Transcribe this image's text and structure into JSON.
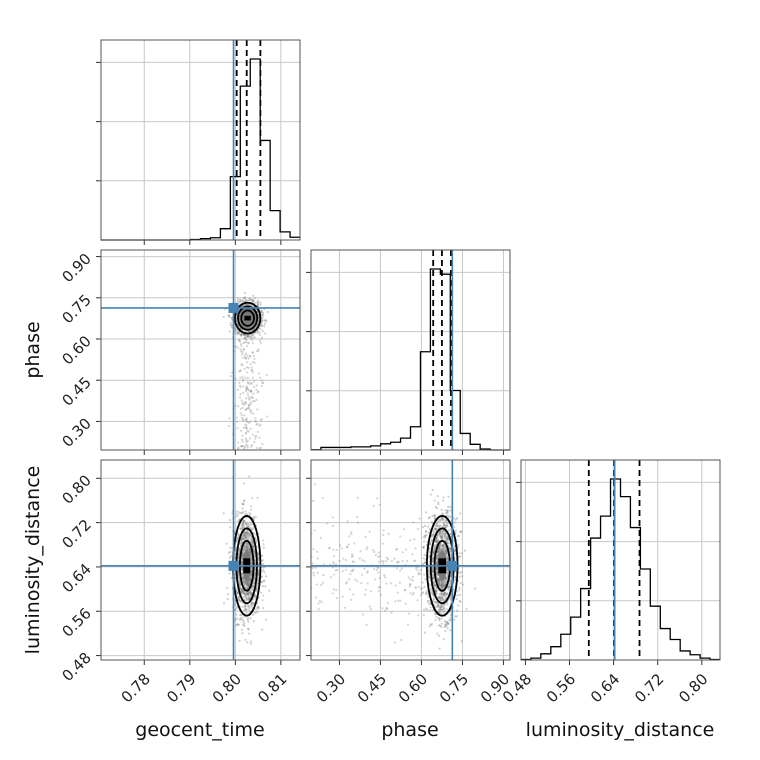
{
  "chart_data": {
    "type": "corner",
    "parameters": [
      "geocent_time",
      "phase",
      "luminosity_distance"
    ],
    "axis_labels": {
      "x": [
        "geocent_time",
        "phase",
        "luminosity_distance"
      ],
      "y": [
        "",
        "phase",
        "luminosity_distance"
      ]
    },
    "ticks": {
      "geocent_time": [
        "0.78",
        "0.79",
        "0.80",
        "0.81"
      ],
      "phase_x": [
        "0.30",
        "0.45",
        "0.60",
        "0.75",
        "0.90"
      ],
      "phase_y": [
        "0.30",
        "0.45",
        "0.60",
        "0.75",
        "0.90"
      ],
      "luminosity_distance_x": [
        "0.48",
        "0.56",
        "0.64",
        "0.72",
        "0.80"
      ],
      "luminosity_distance_y": [
        "0.48",
        "0.56",
        "0.64",
        "0.72",
        "0.80"
      ]
    },
    "ranges": {
      "geocent_time": [
        0.7705,
        0.8142
      ],
      "phase": [
        0.196,
        0.924
      ],
      "luminosity_distance": [
        0.472,
        0.833
      ]
    },
    "truths": {
      "geocent_time": 0.7996,
      "phase": 0.713,
      "luminosity_distance": 0.642
    },
    "quantiles": {
      "geocent_time": [
        0.8003,
        0.8025,
        0.8055
      ],
      "phase": [
        0.643,
        0.675,
        0.708
      ],
      "luminosity_distance": [
        0.595,
        0.641,
        0.687
      ]
    },
    "histograms": {
      "geocent_time": {
        "edges": [
          0.7705,
          0.77269,
          0.77487,
          0.77706,
          0.77924,
          0.78143,
          0.78361,
          0.7858,
          0.78798,
          0.79017,
          0.79235,
          0.79454,
          0.79672,
          0.79891,
          0.80109,
          0.80328,
          0.80546,
          0.80765,
          0.80983,
          0.81202,
          0.8142
        ],
        "counts": [
          0,
          0,
          0,
          0,
          0,
          0,
          0,
          0,
          0,
          1,
          3,
          5,
          25,
          140,
          340,
          400,
          220,
          65,
          18,
          6
        ]
      },
      "phase": {
        "edges": [
          0.196,
          0.2324,
          0.2688,
          0.3052,
          0.3416,
          0.378,
          0.4144,
          0.4508,
          0.4872,
          0.5236,
          0.56,
          0.5964,
          0.6328,
          0.6692,
          0.7056,
          0.742,
          0.7784,
          0.8148,
          0.8512,
          0.8876,
          0.924
        ],
        "counts": [
          1,
          10,
          10,
          10,
          12,
          12,
          16,
          24,
          30,
          46,
          90,
          380,
          700,
          680,
          230,
          64,
          22,
          4,
          0,
          0
        ]
      },
      "luminosity_distance": {
        "edges": [
          0.472,
          0.49,
          0.508,
          0.5261,
          0.5442,
          0.5622,
          0.5802,
          0.5983,
          0.6163,
          0.6344,
          0.6525,
          0.6705,
          0.6886,
          0.7066,
          0.7247,
          0.7427,
          0.7608,
          0.7788,
          0.7969,
          0.8149,
          0.833
        ],
        "counts": [
          1,
          4,
          13,
          28,
          54,
          90,
          150,
          256,
          302,
          380,
          343,
          278,
          191,
          113,
          66,
          43,
          19,
          11,
          4,
          1
        ]
      }
    },
    "joint": [
      {
        "x": "geocent_time",
        "y": "phase",
        "mean": [
          0.8027,
          0.676
        ],
        "sd": [
          0.0014,
          0.028
        ],
        "tail": "y"
      },
      {
        "x": "geocent_time",
        "y": "luminosity_distance",
        "mean": [
          0.8025,
          0.642
        ],
        "sd": [
          0.0015,
          0.045
        ],
        "tail": "none"
      },
      {
        "x": "phase",
        "y": "luminosity_distance",
        "mean": [
          0.676,
          0.642
        ],
        "sd": [
          0.028,
          0.045
        ],
        "tail": "x"
      }
    ],
    "grid": true,
    "colors": {
      "truth": "#4682b4",
      "hist": "#000000",
      "quantile": "#000000",
      "grid": "#c8c8c8"
    }
  }
}
